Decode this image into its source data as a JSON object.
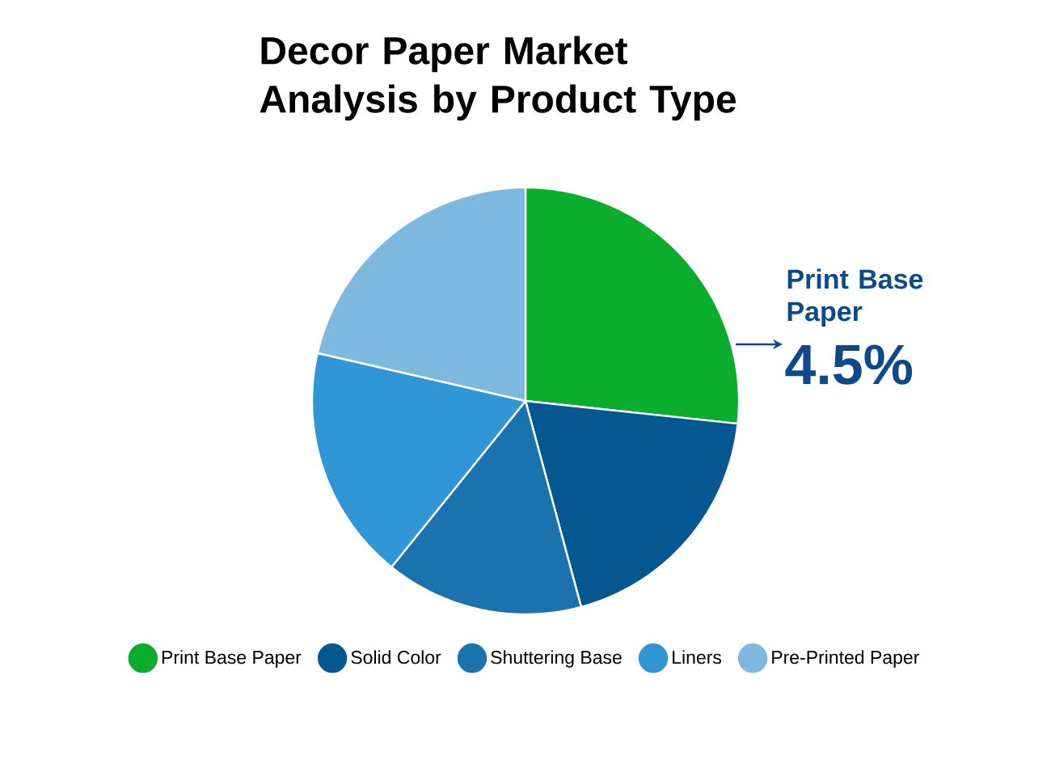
{
  "chart_data": {
    "type": "pie",
    "title": "Decor Paper Market Analysis by Product Type",
    "categories": [
      "Print Base Paper",
      "Solid Color",
      "Shuttering Base",
      "Liners",
      "Pre-Printed Paper"
    ],
    "values": [
      26.7,
      19.1,
      15,
      17.8,
      21.4
    ],
    "colors": [
      "#0aad2c",
      "#05578f",
      "#1a73ae",
      "#3196d6",
      "#7db9df"
    ],
    "legend": "bottom",
    "annotations": [
      "Print Base Paper",
      "4.5%"
    ]
  }
}
